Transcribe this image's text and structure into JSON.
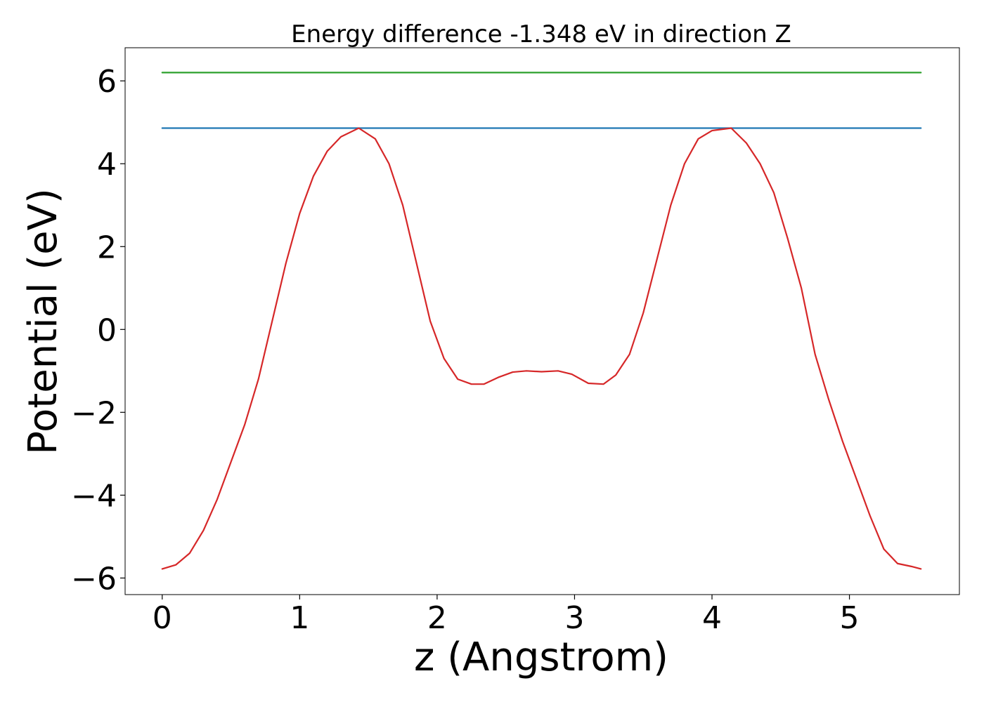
{
  "chart_data": {
    "type": "line",
    "title": "Energy difference -1.348 eV in direction Z",
    "xlabel": "z (Angstrom)",
    "ylabel": "Potential (eV)",
    "xlim": [
      -0.27,
      5.8
    ],
    "ylim": [
      -6.4,
      6.8
    ],
    "xticks": [
      0,
      1,
      2,
      3,
      4,
      5
    ],
    "xtick_labels": [
      "0",
      "1",
      "2",
      "3",
      "4",
      "5"
    ],
    "yticks": [
      6,
      4,
      2,
      0,
      -2,
      -4,
      -6
    ],
    "ytick_labels": [
      "6",
      "4",
      "2",
      "0",
      "−2",
      "−4",
      "−6"
    ],
    "grid": false,
    "series": [
      {
        "color": "#2ca02c",
        "x": [
          0,
          5.52
        ],
        "y": [
          6.2,
          6.2
        ]
      },
      {
        "color": "#1f77b4",
        "x": [
          0,
          5.52
        ],
        "y": [
          4.86,
          4.86
        ]
      },
      {
        "color": "#d62728",
        "x": [
          0,
          0.1,
          0.2,
          0.3,
          0.4,
          0.5,
          0.6,
          0.7,
          0.8,
          0.9,
          1.0,
          1.1,
          1.2,
          1.3,
          1.43,
          1.55,
          1.65,
          1.75,
          1.85,
          1.95,
          2.05,
          2.15,
          2.25,
          2.34,
          2.45,
          2.55,
          2.65,
          2.76,
          2.88,
          2.98,
          3.1,
          3.21,
          3.3,
          3.4,
          3.5,
          3.6,
          3.7,
          3.8,
          3.9,
          4.0,
          4.14,
          4.25,
          4.35,
          4.45,
          4.55,
          4.65,
          4.75,
          4.85,
          4.95,
          5.05,
          5.15,
          5.25,
          5.35,
          5.45,
          5.52
        ],
        "y": [
          -5.78,
          -5.68,
          -5.4,
          -4.85,
          -4.1,
          -3.2,
          -2.3,
          -1.2,
          0.2,
          1.6,
          2.8,
          3.7,
          4.3,
          4.65,
          4.86,
          4.6,
          4.0,
          3.0,
          1.6,
          0.2,
          -0.7,
          -1.2,
          -1.32,
          -1.32,
          -1.15,
          -1.03,
          -1.0,
          -1.02,
          -1.0,
          -1.08,
          -1.3,
          -1.32,
          -1.1,
          -0.6,
          0.4,
          1.7,
          3.0,
          4.0,
          4.6,
          4.8,
          4.86,
          4.5,
          4.0,
          3.3,
          2.2,
          1.0,
          -0.6,
          -1.7,
          -2.7,
          -3.6,
          -4.5,
          -5.3,
          -5.65,
          -5.72,
          -5.78
        ]
      }
    ]
  }
}
